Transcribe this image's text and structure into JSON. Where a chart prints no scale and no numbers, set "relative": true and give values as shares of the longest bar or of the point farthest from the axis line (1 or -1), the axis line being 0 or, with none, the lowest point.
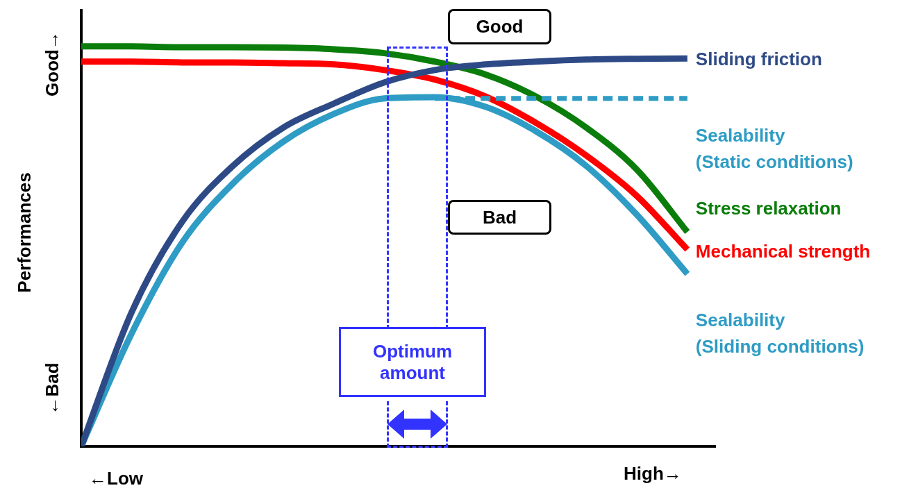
{
  "chart_data": {
    "type": "line",
    "relative": true,
    "ylabel": "Performances",
    "legend": false,
    "grid": false,
    "marker": "none",
    "annotations": [
      "Good→",
      "←Bad",
      "←Low",
      "High→",
      "Good",
      "Bad",
      "Optimum amount"
    ],
    "categories": [
      null,
      null,
      null,
      null,
      null,
      null,
      null,
      null,
      null,
      null,
      null,
      null,
      null
    ],
    "series": [
      {
        "name": "Sliding friction",
        "color": "#2e4a86",
        "values": [
          0,
          0.336,
          0.562,
          0.701,
          0.797,
          0.857,
          0.91,
          0.941,
          0.955,
          0.962,
          0.967,
          0.969,
          0.97
        ]
      },
      {
        "name": "Sealability (Static conditions)",
        "color": "#2e9cc4",
        "line_style": "dashed",
        "values": [
          null,
          null,
          null,
          null,
          null,
          null,
          null,
          0.87,
          0.87,
          0.87,
          0.87,
          0.87,
          0.87
        ]
      },
      {
        "name": "Stress relaxation",
        "color": "#0a7d0a",
        "values": [
          1,
          1,
          0.998,
          0.998,
          0.997,
          0.993,
          0.983,
          0.962,
          0.93,
          0.875,
          0.797,
          0.692,
          0.536
        ]
      },
      {
        "name": "Mechanical strength",
        "color": "#ff0000",
        "values": [
          0.962,
          0.962,
          0.96,
          0.96,
          0.958,
          0.955,
          0.941,
          0.917,
          0.875,
          0.809,
          0.727,
          0.626,
          0.492
        ]
      },
      {
        "name": "Sealability (Sliding conditions)",
        "color": "#2e9cc4",
        "values": [
          0,
          0.283,
          0.51,
          0.657,
          0.762,
          0.831,
          0.87,
          0.873,
          0.849,
          0.788,
          0.701,
          0.579,
          0.431
        ]
      }
    ]
  }
}
